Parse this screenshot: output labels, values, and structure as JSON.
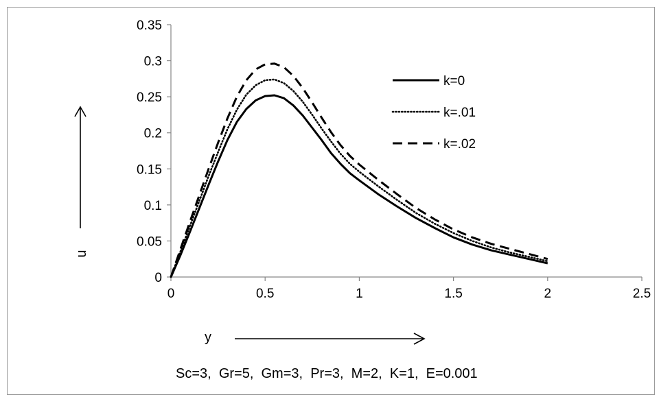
{
  "chart_data": {
    "type": "line",
    "xlabel": "y",
    "ylabel": "u",
    "caption": "Sc=3,  Gr=5,  Gm=3,  Pr=3,  M=2,  K=1,  E=0.001",
    "xlim": [
      0,
      2.5
    ],
    "ylim": [
      0,
      0.35
    ],
    "xticks": [
      "0",
      "0.5",
      "1",
      "1.5",
      "2",
      "2.5"
    ],
    "yticks": [
      "0",
      "0.05",
      "0.1",
      "0.15",
      "0.2",
      "0.25",
      "0.3",
      "0.35"
    ],
    "grid": false,
    "legend_position": "top-right",
    "x": [
      0,
      0.05,
      0.1,
      0.15,
      0.2,
      0.25,
      0.3,
      0.35,
      0.4,
      0.45,
      0.5,
      0.55,
      0.6,
      0.65,
      0.7,
      0.75,
      0.8,
      0.85,
      0.9,
      0.95,
      1.0,
      1.1,
      1.2,
      1.3,
      1.4,
      1.5,
      1.6,
      1.7,
      1.8,
      1.9,
      2.0
    ],
    "series": [
      {
        "name": "k=0",
        "style": "solid",
        "values": [
          0,
          0.03,
          0.062,
          0.095,
          0.128,
          0.16,
          0.19,
          0.215,
          0.233,
          0.245,
          0.251,
          0.252,
          0.248,
          0.238,
          0.224,
          0.207,
          0.19,
          0.172,
          0.157,
          0.144,
          0.134,
          0.115,
          0.098,
          0.082,
          0.068,
          0.055,
          0.045,
          0.037,
          0.031,
          0.025,
          0.019
        ]
      },
      {
        "name": "k=.01",
        "style": "dotted",
        "values": [
          0,
          0.035,
          0.07,
          0.105,
          0.14,
          0.173,
          0.205,
          0.232,
          0.253,
          0.266,
          0.273,
          0.274,
          0.269,
          0.258,
          0.243,
          0.225,
          0.206,
          0.188,
          0.171,
          0.157,
          0.146,
          0.126,
          0.107,
          0.089,
          0.074,
          0.061,
          0.05,
          0.041,
          0.034,
          0.028,
          0.022
        ]
      },
      {
        "name": "k=.02",
        "style": "dashed",
        "values": [
          0,
          0.038,
          0.076,
          0.113,
          0.15,
          0.186,
          0.22,
          0.25,
          0.273,
          0.288,
          0.295,
          0.296,
          0.291,
          0.279,
          0.262,
          0.242,
          0.221,
          0.201,
          0.183,
          0.168,
          0.156,
          0.135,
          0.115,
          0.096,
          0.08,
          0.066,
          0.055,
          0.046,
          0.039,
          0.032,
          0.025
        ]
      }
    ]
  }
}
